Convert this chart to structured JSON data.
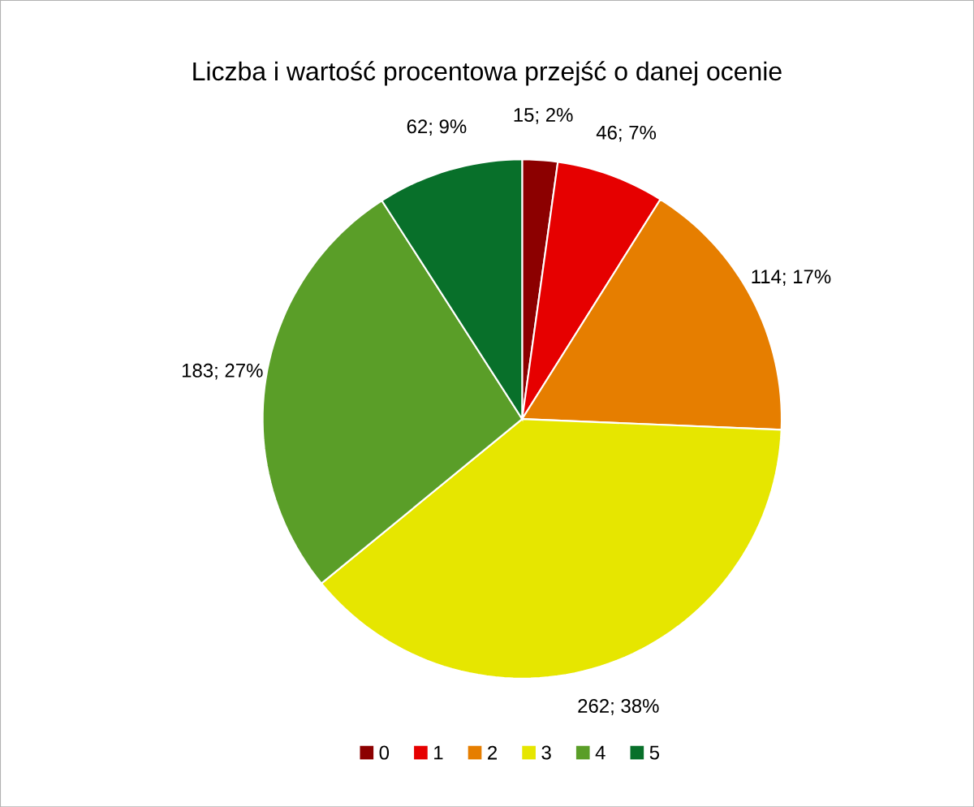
{
  "chart_data": {
    "type": "pie",
    "title": "Liczba i wartość procentowa przejść o danej ocenie",
    "categories": [
      "0",
      "1",
      "2",
      "3",
      "4",
      "5"
    ],
    "values": [
      15,
      46,
      114,
      262,
      183,
      62
    ],
    "colors": [
      "#8c0000",
      "#e60000",
      "#e67e00",
      "#e6e600",
      "#5a9e28",
      "#08702a"
    ],
    "value_labels": [
      "15; 2%",
      "46; 7%",
      "114; 17%",
      "262; 38%",
      "183; 27%",
      "62; 9%"
    ],
    "legend": "bottom"
  }
}
